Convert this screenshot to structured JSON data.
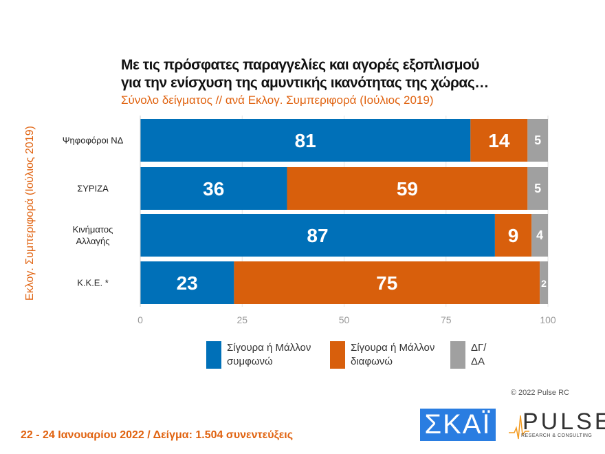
{
  "chart_data": {
    "type": "stacked-bar-horizontal",
    "title": "Με τις πρόσφατες παραγγελίες και αγορές εξοπλισμού για την ενίσχυση της αμυντικής ικανότητας της χώρας…",
    "subtitle": "Σύνολο δείγματος // ανά Εκλογ. Συμπεριφορά (Ιούλιος 2019)",
    "ylabel": "Εκλογ. Συμπεριφορά (Ιούλιος 2019)",
    "categories": [
      "Ψηφοφόροι ΝΔ",
      "ΣΥΡΙΖΑ",
      "Κινήματος Αλλαγής",
      "Κ.Κ.Ε. *"
    ],
    "series": [
      {
        "name": "Σίγουρα ή Μάλλον συμφωνώ",
        "color": "#0070b8",
        "values": [
          81,
          36,
          87,
          23
        ]
      },
      {
        "name": "Σίγουρα ή Μάλλον διαφωνώ",
        "color": "#d85f0c",
        "values": [
          14,
          59,
          9,
          75
        ]
      },
      {
        "name": "ΔΓ/ΔΑ",
        "color": "#a0a0a0",
        "values": [
          5,
          5,
          4,
          2
        ]
      }
    ],
    "xlim": [
      0,
      100
    ],
    "xticks": [
      "0",
      "25",
      "50",
      "75",
      "100"
    ],
    "legend": "bottom",
    "grid": true
  },
  "footer": {
    "copyright": "© 2022 Pulse RC",
    "fieldwork": "22 - 24  Ιανουαρίου  2022  /  Δείγμα:  1.504 συνεντεύξεις"
  },
  "logos": {
    "skai": "ΣΚΑΪ",
    "pulse": "PULSE",
    "pulse_sub": "RESEARCH & CONSULTING"
  }
}
